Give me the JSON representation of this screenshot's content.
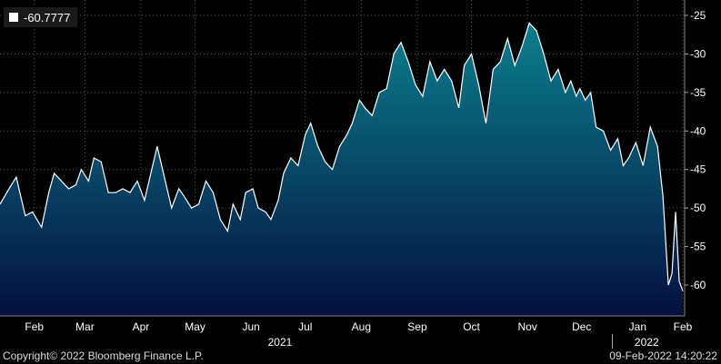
{
  "legend": {
    "label": "-60.7777",
    "swatch_color": "#ffffff"
  },
  "footer": {
    "copyright": "Copyright© 2022 Bloomberg Finance L.P.",
    "timestamp": "09-Feb-2022 14:20:22"
  },
  "colors": {
    "background": "#000000",
    "line": "#ffffff",
    "fill_top": "#0a7f8e",
    "fill_bottom": "#061040",
    "grid": "#5a5a5a"
  },
  "chart_data": {
    "type": "area",
    "grid": true,
    "y_axis_side": "right",
    "ylim": [
      -64,
      -23
    ],
    "yticks": [
      -25,
      -30,
      -35,
      -40,
      -45,
      -50,
      -55,
      -60
    ],
    "ytick_labels": [
      "-25",
      "-30",
      "-35",
      "-40",
      "-45",
      "-50",
      "-55",
      "-60"
    ],
    "xlim": [
      "2021-01-27",
      "2022-02-10"
    ],
    "month_ticks": [
      {
        "date": "2021-02-15",
        "label": "Feb"
      },
      {
        "date": "2021-03-15",
        "label": "Mar"
      },
      {
        "date": "2021-04-15",
        "label": "Apr"
      },
      {
        "date": "2021-05-15",
        "label": "May"
      },
      {
        "date": "2021-06-15",
        "label": "Jun"
      },
      {
        "date": "2021-07-15",
        "label": "Jul"
      },
      {
        "date": "2021-08-15",
        "label": "Aug"
      },
      {
        "date": "2021-09-15",
        "label": "Sep"
      },
      {
        "date": "2021-10-15",
        "label": "Oct"
      },
      {
        "date": "2021-11-15",
        "label": "Nov"
      },
      {
        "date": "2021-12-15",
        "label": "Dec"
      },
      {
        "date": "2022-01-15",
        "label": "Jan"
      },
      {
        "date": "2022-02-09",
        "label": "Feb"
      }
    ],
    "year_labels": [
      {
        "date": "2021-07-01",
        "label": "2021"
      },
      {
        "date": "2022-01-20",
        "label": "2022"
      }
    ],
    "year_separator": "2022-01-01",
    "x": [
      "2021-01-27",
      "2021-02-01",
      "2021-02-05",
      "2021-02-10",
      "2021-02-14",
      "2021-02-19",
      "2021-02-23",
      "2021-02-26",
      "2021-03-02",
      "2021-03-06",
      "2021-03-10",
      "2021-03-13",
      "2021-03-17",
      "2021-03-20",
      "2021-03-24",
      "2021-03-28",
      "2021-04-01",
      "2021-04-05",
      "2021-04-09",
      "2021-04-13",
      "2021-04-17",
      "2021-04-21",
      "2021-04-24",
      "2021-04-28",
      "2021-05-02",
      "2021-05-06",
      "2021-05-09",
      "2021-05-13",
      "2021-05-17",
      "2021-05-21",
      "2021-05-25",
      "2021-05-29",
      "2021-06-02",
      "2021-06-05",
      "2021-06-09",
      "2021-06-12",
      "2021-06-16",
      "2021-06-19",
      "2021-06-23",
      "2021-06-26",
      "2021-06-30",
      "2021-07-03",
      "2021-07-07",
      "2021-07-11",
      "2021-07-15",
      "2021-07-18",
      "2021-07-22",
      "2021-07-26",
      "2021-07-30",
      "2021-08-03",
      "2021-08-07",
      "2021-08-10",
      "2021-08-14",
      "2021-08-17",
      "2021-08-21",
      "2021-08-25",
      "2021-08-29",
      "2021-09-02",
      "2021-09-06",
      "2021-09-10",
      "2021-09-14",
      "2021-09-18",
      "2021-09-22",
      "2021-09-26",
      "2021-09-30",
      "2021-10-04",
      "2021-10-08",
      "2021-10-11",
      "2021-10-15",
      "2021-10-19",
      "2021-10-23",
      "2021-10-27",
      "2021-10-31",
      "2021-11-04",
      "2021-11-08",
      "2021-11-12",
      "2021-11-16",
      "2021-11-20",
      "2021-11-24",
      "2021-11-28",
      "2021-12-02",
      "2021-12-06",
      "2021-12-09",
      "2021-12-12",
      "2021-12-14",
      "2021-12-17",
      "2021-12-20",
      "2021-12-23",
      "2021-12-27",
      "2021-12-31",
      "2022-01-04",
      "2022-01-07",
      "2022-01-10",
      "2022-01-14",
      "2022-01-18",
      "2022-01-22",
      "2022-01-26",
      "2022-01-29",
      "2022-02-01",
      "2022-02-03",
      "2022-02-05",
      "2022-02-07",
      "2022-02-09"
    ],
    "values": [
      -49.5,
      -47.5,
      -46,
      -51,
      -50.5,
      -52.5,
      -48,
      -45.5,
      -46.5,
      -47.5,
      -47,
      -45,
      -46.5,
      -43.5,
      -44,
      -48,
      -48,
      -47.5,
      -48,
      -46.5,
      -49,
      -45,
      -42,
      -46,
      -50,
      -47.5,
      -48.5,
      -50,
      -49.5,
      -46.5,
      -48,
      -51.5,
      -53,
      -49.5,
      -51.5,
      -48,
      -47.5,
      -50,
      -50.5,
      -51.5,
      -49,
      -45.5,
      -43.5,
      -44.5,
      -40.5,
      -39,
      -42,
      -44,
      -45,
      -42,
      -40.5,
      -39,
      -36,
      -37,
      -38,
      -35,
      -34.5,
      -30,
      -28.5,
      -31,
      -34,
      -35.5,
      -31,
      -33.5,
      -32,
      -33.5,
      -37,
      -31.5,
      -30,
      -34,
      -39,
      -32,
      -31,
      -28,
      -31.5,
      -29,
      -26,
      -27,
      -30,
      -33.5,
      -32,
      -35,
      -33.5,
      -35.5,
      -34.5,
      -36,
      -35,
      -39.5,
      -40,
      -42.5,
      -41,
      -44.5,
      -43.5,
      -41.5,
      -44.5,
      -39.5,
      -42,
      -48.5,
      -60,
      -58.5,
      -50.5,
      -59.5,
      -60.7777
    ]
  }
}
